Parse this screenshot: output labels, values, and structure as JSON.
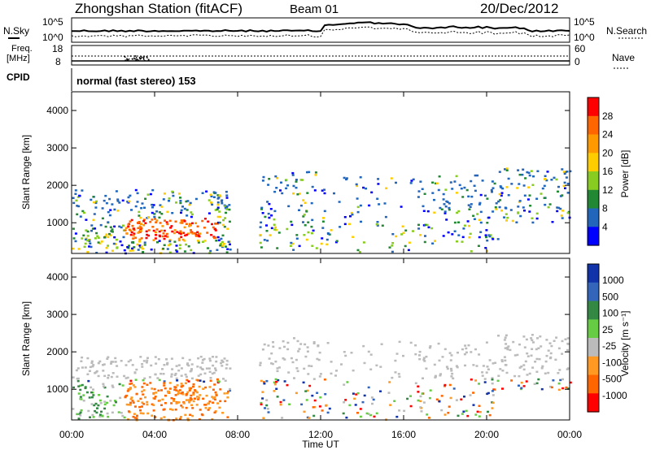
{
  "header": {
    "station": "Zhongshan Station (fitACF)",
    "beam": "Beam 01",
    "date": "20/Dec/2012"
  },
  "summary": {
    "nsky_label": "N.Sky",
    "nsky_ticks": [
      "10^5",
      "10^0"
    ],
    "nsearch_label": "N.Search",
    "nsearch_ticks": [
      "10^5",
      "10^0"
    ],
    "freq_label_line1": "Freq.",
    "freq_label_line2": "[MHz]",
    "freq_ticks": [
      "18",
      "8"
    ],
    "nave_label": "Nave",
    "nave_ticks": [
      "60",
      "0"
    ],
    "cpid_label": "CPID",
    "cpid_text": "normal (fast stereo) 153"
  },
  "chart_data": [
    {
      "type": "heatmap",
      "title": "",
      "xlabel": "Time UT",
      "ylabel": "Slant Range [km]",
      "x_ticks": [
        "00:00",
        "04:00",
        "08:00",
        "12:00",
        "16:00",
        "20:00",
        "00:00"
      ],
      "xlim_hours": [
        0,
        24
      ],
      "ylim": [
        180,
        4500
      ],
      "y_ticks": [
        1000,
        2000,
        3000,
        4000
      ],
      "colorbar": {
        "label": "Power [dB]",
        "ticks": [
          "28",
          "24",
          "20",
          "16",
          "12",
          "8",
          "4"
        ],
        "colors": [
          "#ff0000",
          "#ff6600",
          "#ff9900",
          "#ffcc00",
          "#88cc22",
          "#228833",
          "#2266bb",
          "#0000ff"
        ]
      },
      "scatter_regions": [
        {
          "t0": 0.0,
          "t1": 7.6,
          "r0": 200,
          "r1": 1900,
          "dense": 0.85
        },
        {
          "t0": 2.5,
          "t1": 7.0,
          "r0": 600,
          "r1": 1100,
          "dense": 0.95
        },
        {
          "t0": 9.0,
          "t1": 12.3,
          "r0": 250,
          "r1": 2400,
          "dense": 0.45
        },
        {
          "t0": 12.3,
          "t1": 16.5,
          "r0": 200,
          "r1": 2300,
          "dense": 0.22
        },
        {
          "t0": 16.5,
          "t1": 20.5,
          "r0": 250,
          "r1": 2300,
          "dense": 0.45
        },
        {
          "t0": 20.5,
          "t1": 24.0,
          "r0": 1000,
          "r1": 2500,
          "dense": 0.6
        }
      ]
    },
    {
      "type": "heatmap",
      "title": "",
      "xlabel": "Time UT",
      "ylabel": "Slant Range [km]",
      "x_ticks": [
        "00:00",
        "04:00",
        "08:00",
        "12:00",
        "16:00",
        "20:00",
        "00:00"
      ],
      "xlim_hours": [
        0,
        24
      ],
      "ylim": [
        180,
        4500
      ],
      "y_ticks": [
        1000,
        2000,
        3000,
        4000
      ],
      "colorbar": {
        "label": "Velocity [m s⁻¹]",
        "ticks": [
          "1000",
          "500",
          "100",
          "25",
          "-25",
          "-100",
          "-500",
          "-1000"
        ],
        "colors": [
          "#1133aa",
          "#3366bb",
          "#338844",
          "#66cc44",
          "#bbbbbb",
          "#ff9922",
          "#ff6600",
          "#ff0000"
        ]
      },
      "scatter_regions": [
        {
          "t0": 0.0,
          "t1": 7.6,
          "r0": 200,
          "r1": 1900,
          "dense": 0.85
        },
        {
          "t0": 2.5,
          "t1": 7.0,
          "r0": 600,
          "r1": 1100,
          "dense": 0.95
        },
        {
          "t0": 9.0,
          "t1": 12.3,
          "r0": 250,
          "r1": 2400,
          "dense": 0.45
        },
        {
          "t0": 12.3,
          "t1": 16.5,
          "r0": 200,
          "r1": 2300,
          "dense": 0.22
        },
        {
          "t0": 16.5,
          "t1": 20.5,
          "r0": 250,
          "r1": 2300,
          "dense": 0.45
        },
        {
          "t0": 20.5,
          "t1": 24.0,
          "r0": 1000,
          "r1": 2500,
          "dense": 0.6
        }
      ]
    }
  ]
}
